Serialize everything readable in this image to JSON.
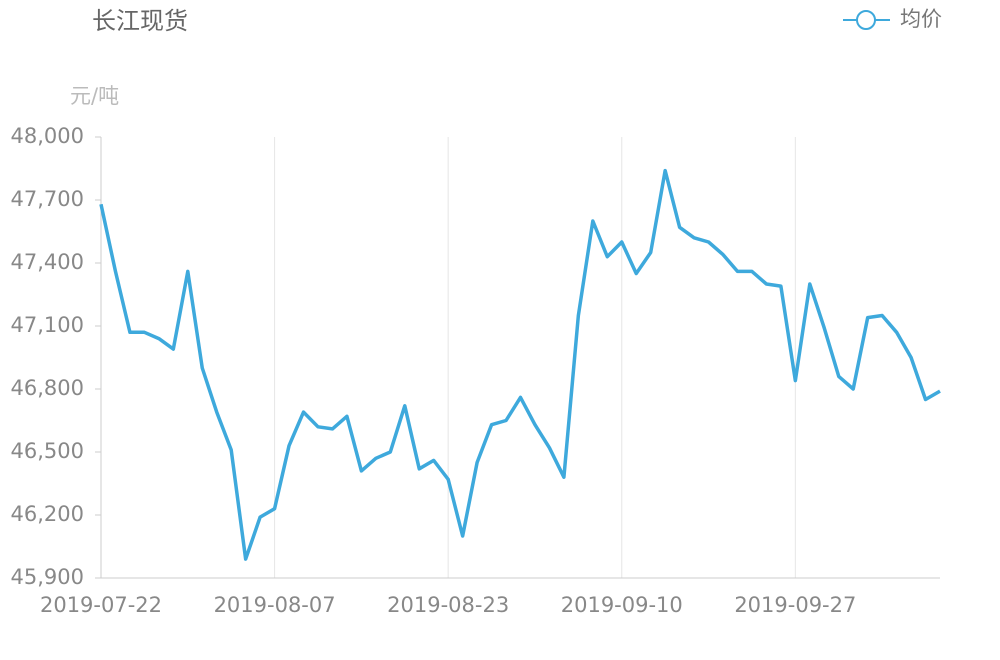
{
  "chart_data": {
    "type": "line",
    "title": "长江现货",
    "y_label": "元/吨",
    "categories": [
      "2019-07-22",
      null,
      null,
      null,
      null,
      null,
      null,
      null,
      null,
      null,
      null,
      null,
      "2019-08-07",
      null,
      null,
      null,
      null,
      null,
      null,
      null,
      null,
      null,
      null,
      null,
      "2019-08-23",
      null,
      null,
      null,
      null,
      null,
      null,
      null,
      null,
      null,
      null,
      null,
      "2019-09-10",
      null,
      null,
      null,
      null,
      null,
      null,
      null,
      null,
      null,
      null,
      null,
      "2019-09-27",
      null,
      null,
      null,
      null,
      null,
      null,
      null,
      null,
      null,
      null
    ],
    "series": [
      {
        "name": "均价",
        "color": "#3ea9dc",
        "values": [
          47680,
          47360,
          47070,
          47070,
          47040,
          46990,
          47360,
          46900,
          46690,
          46510,
          45990,
          46190,
          46230,
          46530,
          46690,
          46620,
          46610,
          46670,
          46410,
          46470,
          46500,
          46720,
          46420,
          46460,
          46370,
          46100,
          46450,
          46630,
          46650,
          46760,
          46630,
          46520,
          46380,
          47150,
          47600,
          47430,
          47500,
          47350,
          47450,
          47840,
          47570,
          47520,
          47500,
          47440,
          47360,
          47360,
          47300,
          47290,
          46840,
          47300,
          47090,
          46860,
          46800,
          47140,
          47150,
          47070,
          46950,
          46750,
          46790
        ]
      }
    ],
    "ylim": [
      45900,
      48000
    ],
    "yticks": [
      {
        "value": 45900,
        "label": "45,900"
      },
      {
        "value": 46200,
        "label": "46,200"
      },
      {
        "value": 46500,
        "label": "46,500"
      },
      {
        "value": 46800,
        "label": "46,800"
      },
      {
        "value": 47100,
        "label": "47,100"
      },
      {
        "value": 47400,
        "label": "47,400"
      },
      {
        "value": 47700,
        "label": "47,700"
      },
      {
        "value": 48000,
        "label": "48,000"
      }
    ],
    "legend": "top-right"
  }
}
